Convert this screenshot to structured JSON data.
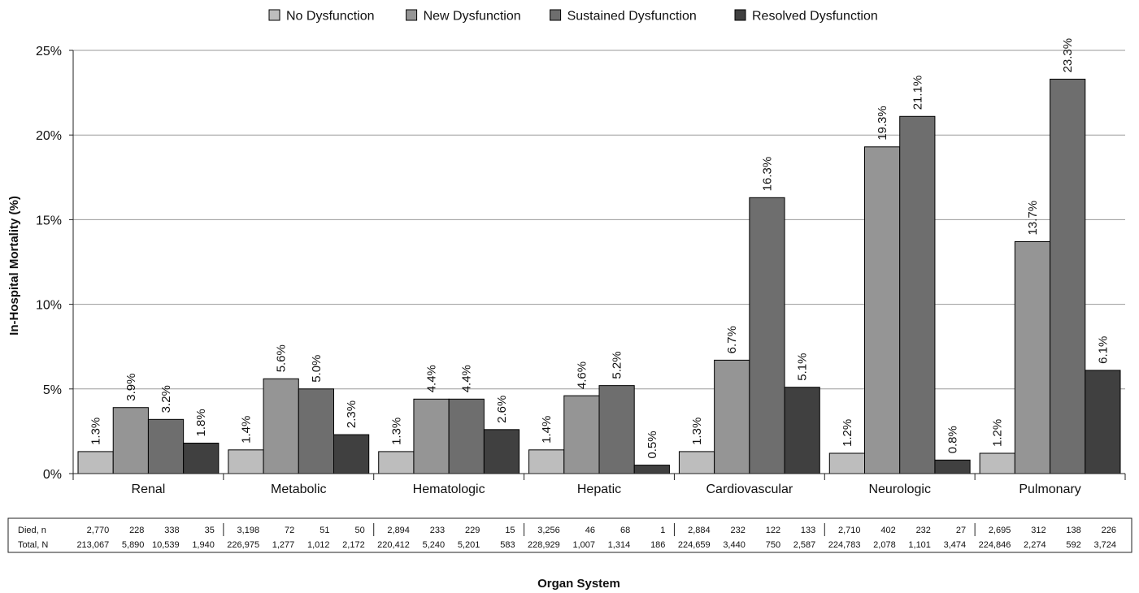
{
  "chart_data": {
    "type": "bar",
    "title": "",
    "ylabel": "In-Hospital Mortality (%)",
    "xlabel": "Organ System",
    "ylim": [
      0,
      25
    ],
    "yticks": [
      "0%",
      "5%",
      "10%",
      "15%",
      "20%",
      "25%"
    ],
    "grid": "horizontal",
    "legend_position": "top-center",
    "categories": [
      "Renal",
      "Metabolic",
      "Hematologic",
      "Hepatic",
      "Cardiovascular",
      "Neurologic",
      "Pulmonary"
    ],
    "series": [
      {
        "name": "No Dysfunction",
        "color": "#bdbdbd",
        "values": [
          1.3,
          1.4,
          1.3,
          1.4,
          1.3,
          1.2,
          1.2
        ],
        "labels": [
          "1.3%",
          "1.4%",
          "1.3%",
          "1.4%",
          "1.3%",
          "1.2%",
          "1.2%"
        ]
      },
      {
        "name": "New Dysfunction",
        "color": "#959595",
        "values": [
          3.9,
          5.6,
          4.4,
          4.6,
          6.7,
          19.3,
          13.7
        ],
        "labels": [
          "3.9%",
          "5.6%",
          "4.4%",
          "4.6%",
          "6.7%",
          "19.3%",
          "13.7%"
        ]
      },
      {
        "name": "Sustained Dysfunction",
        "color": "#6e6e6e",
        "values": [
          3.2,
          5.0,
          4.4,
          5.2,
          16.3,
          21.1,
          23.3
        ],
        "labels": [
          "3.2%",
          "5.0%",
          "4.4%",
          "5.2%",
          "16.3%",
          "21.1%",
          "23.3%"
        ]
      },
      {
        "name": "Resolved Dysfunction",
        "color": "#404040",
        "values": [
          1.8,
          2.3,
          2.6,
          0.5,
          5.1,
          0.8,
          6.1
        ],
        "labels": [
          "1.8%",
          "2.3%",
          "2.6%",
          "0.5%",
          "5.1%",
          "0.8%",
          "6.1%"
        ]
      }
    ],
    "table": {
      "rows": [
        {
          "label": "Died, n",
          "values": [
            [
              "2,770",
              "228",
              "338",
              "35"
            ],
            [
              "3,198",
              "72",
              "51",
              "50"
            ],
            [
              "2,894",
              "233",
              "229",
              "15"
            ],
            [
              "3,256",
              "46",
              "68",
              "1"
            ],
            [
              "2,884",
              "232",
              "122",
              "133"
            ],
            [
              "2,710",
              "402",
              "232",
              "27"
            ],
            [
              "2,695",
              "312",
              "138",
              "226"
            ]
          ]
        },
        {
          "label": "Total, N",
          "values": [
            [
              "213,067",
              "5,890",
              "10,539",
              "1,940"
            ],
            [
              "226,975",
              "1,277",
              "1,012",
              "2,172"
            ],
            [
              "220,412",
              "5,240",
              "5,201",
              "583"
            ],
            [
              "228,929",
              "1,007",
              "1,314",
              "186"
            ],
            [
              "224,659",
              "3,440",
              "750",
              "2,587"
            ],
            [
              "224,783",
              "2,078",
              "1,101",
              "3,474"
            ],
            [
              "224,846",
              "2,274",
              "592",
              "3,724"
            ]
          ]
        }
      ]
    }
  }
}
